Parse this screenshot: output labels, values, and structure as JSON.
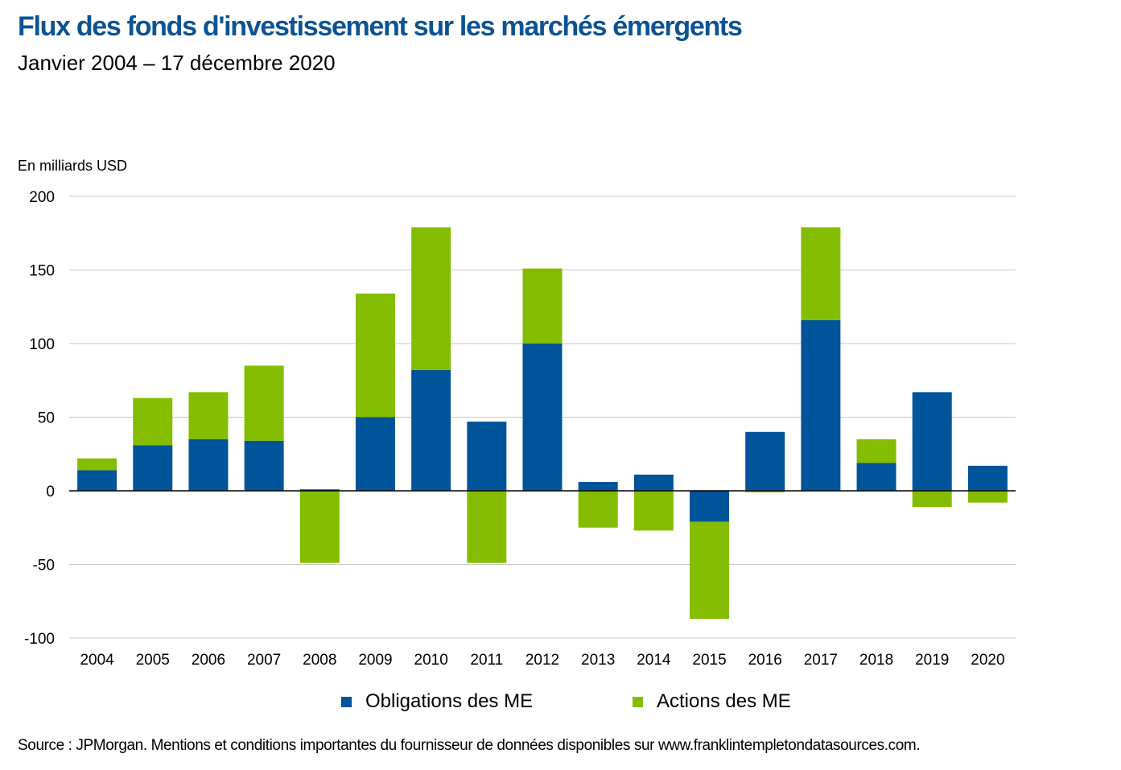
{
  "title": "Flux des fonds d'investissement sur les marchés émergents",
  "subtitle": "Janvier 2004 – 17 décembre 2020",
  "source": "Source : JPMorgan. Mentions et conditions importantes du fournisseur de données disponibles sur www.franklintempletondatasources.com.",
  "colors": {
    "bonds": "#00549a",
    "equities": "#84bd00",
    "title": "#0b5394",
    "grid": "#c8c8c8"
  },
  "chart_data": {
    "type": "bar",
    "stacked": true,
    "ylabel": "En milliards USD",
    "ylim": [
      -100,
      200
    ],
    "yticks": [
      200,
      150,
      100,
      50,
      0,
      -50,
      -100
    ],
    "grid": true,
    "legend_position": "bottom",
    "categories": [
      "2004",
      "2005",
      "2006",
      "2007",
      "2008",
      "2009",
      "2010",
      "2011",
      "2012",
      "2013",
      "2014",
      "2015",
      "2016",
      "2017",
      "2018",
      "2019",
      "2020"
    ],
    "series": [
      {
        "name": "Obligations des ME",
        "values": [
          14,
          31,
          35,
          34,
          1,
          50,
          82,
          47,
          100,
          6,
          11,
          -21,
          40,
          116,
          19,
          67,
          17
        ]
      },
      {
        "name": "Actions des ME",
        "values": [
          8,
          32,
          32,
          51,
          -49,
          84,
          97,
          -49,
          51,
          -25,
          -27,
          -66,
          -1,
          63,
          16,
          -11,
          -8
        ]
      }
    ]
  }
}
